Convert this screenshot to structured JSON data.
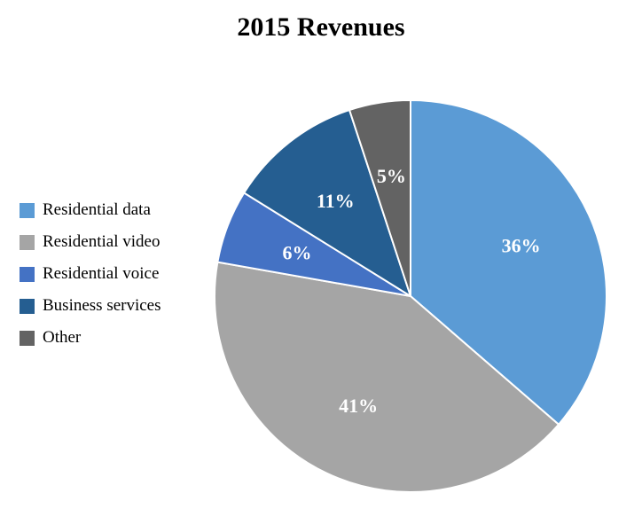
{
  "chart_data": {
    "type": "pie",
    "title": "2015 Revenues",
    "categories": [
      "Residential data",
      "Residential video",
      "Residential voice",
      "Business services",
      "Other"
    ],
    "values": [
      36,
      41,
      6,
      11,
      5
    ],
    "labels": [
      "36%",
      "41%",
      "6%",
      "11%",
      "5%"
    ],
    "colors": [
      "#5b9bd5",
      "#a5a5a5",
      "#4472c4",
      "#255e91",
      "#636363"
    ],
    "legend_position": "left",
    "start_angle": "12 o'clock",
    "direction": "clockwise"
  }
}
